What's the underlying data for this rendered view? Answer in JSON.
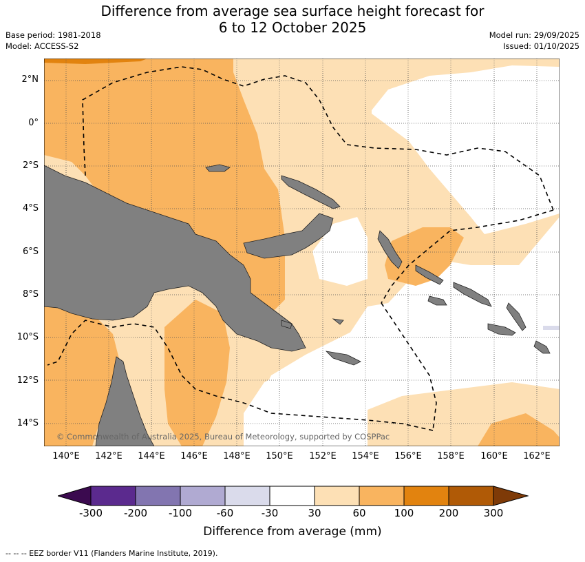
{
  "title_line1": "Difference from average sea surface height forecast for",
  "title_line2": "6 to 12 October 2025",
  "base_period": "Base period: 1981-2018",
  "model": "Model: ACCESS-S2",
  "model_run": "Model run: 29/09/2025",
  "issued": "Issued: 01/10/2025",
  "lat_labels": [
    "2°N",
    "0°",
    "2°S",
    "4°S",
    "6°S",
    "8°S",
    "10°S",
    "12°S",
    "14°S"
  ],
  "lon_labels": [
    "140°E",
    "142°E",
    "144°E",
    "146°E",
    "148°E",
    "150°E",
    "152°E",
    "154°E",
    "156°E",
    "158°E",
    "160°E",
    "162°E"
  ],
  "copyright": "© Commonwealth of Australia 2025, Bureau of Meteorology, supported by COSPPac",
  "colorbar": {
    "labels": [
      "-300",
      "-200",
      "-100",
      "-60",
      "-30",
      "30",
      "60",
      "100",
      "200",
      "300"
    ],
    "colors": {
      "lt300": "#3b0a4f",
      "m300_200": "#5b2a8e",
      "m200_100": "#8275b0",
      "m100_60": "#b0aad2",
      "m60_30": "#dadbeb",
      "m30_30": "#ffffff",
      "p30_60": "#fde0b5",
      "p60_100": "#f9b45f",
      "p100_200": "#e2830f",
      "p200_300": "#b05a06",
      "gt300": "#7e3a07"
    },
    "title": "Difference from average (mm)"
  },
  "land_color": "#808080",
  "legend_note": "--  --  -- EEZ border V11 (Flanders Marine Institute, 2019)."
}
